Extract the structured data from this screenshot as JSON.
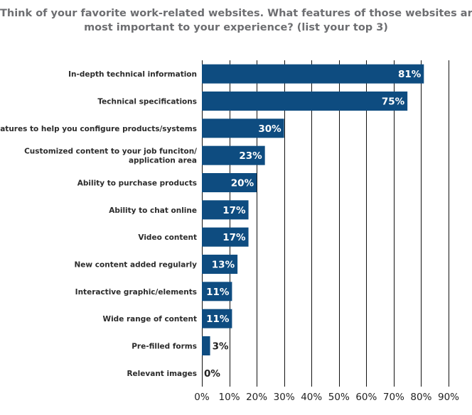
{
  "chart_data": {
    "type": "bar",
    "orientation": "horizontal",
    "title_lines": [
      "Think of your favorite work-related websites. What features of those websites are",
      "most important to your experience? (list your top 3)"
    ],
    "categories": [
      [
        "In-depth technical information"
      ],
      [
        "Technical specifications"
      ],
      [
        "Features to help you configure products/systems"
      ],
      [
        "Customized content to your job funciton/",
        "application area"
      ],
      [
        "Ability to purchase products"
      ],
      [
        "Ability to chat online"
      ],
      [
        "Video content"
      ],
      [
        "New content added regularly"
      ],
      [
        "Interactive graphic/elements"
      ],
      [
        "Wide range of content"
      ],
      [
        "Pre-filled forms"
      ],
      [
        "Relevant images"
      ]
    ],
    "values": [
      81,
      75,
      30,
      23,
      20,
      17,
      17,
      13,
      11,
      11,
      3,
      0
    ],
    "value_labels": [
      "81%",
      "75%",
      "30%",
      "23%",
      "20%",
      "17%",
      "17%",
      "13%",
      "11%",
      "11%",
      "3%",
      "0%"
    ],
    "xlim": [
      0,
      90
    ],
    "x_ticks": [
      0,
      10,
      20,
      30,
      40,
      50,
      60,
      70,
      80,
      90
    ],
    "x_tick_labels": [
      "0%",
      "10%",
      "20%",
      "30%",
      "40%",
      "50%",
      "60%",
      "70%",
      "80%",
      "90%"
    ],
    "grid": true,
    "colors": {
      "bar": "#0e4c80",
      "grid": "#111111",
      "label_inside": "#ffffff",
      "label_outside": "#222222"
    }
  }
}
